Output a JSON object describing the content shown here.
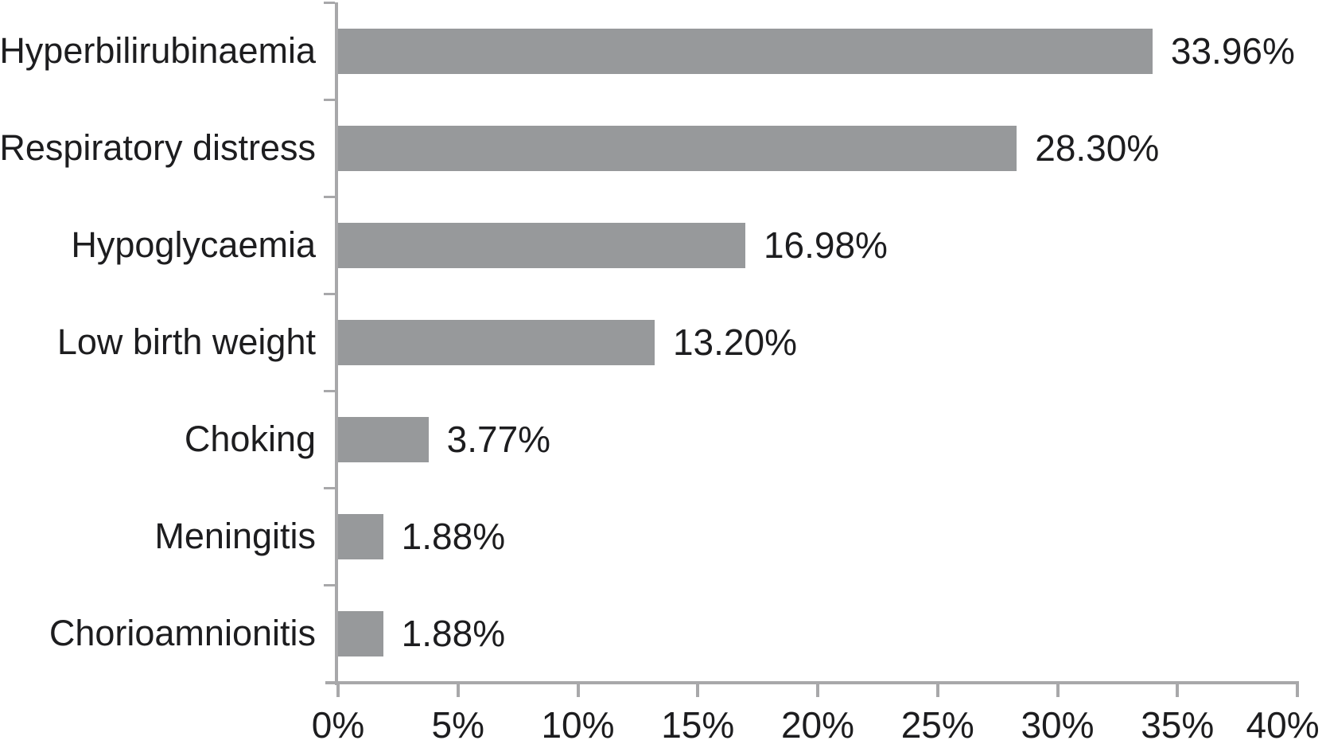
{
  "chart_data": {
    "type": "bar",
    "orientation": "horizontal",
    "categories": [
      "Hyperbilirubinaemia",
      "Respiratory distress",
      "Hypoglycaemia",
      "Low birth weight",
      "Choking",
      "Meningitis",
      "Chorioamnionitis"
    ],
    "values": [
      33.96,
      28.3,
      16.98,
      13.2,
      3.77,
      1.88,
      1.88
    ],
    "value_labels": [
      "33.96%",
      "28.30%",
      "16.98%",
      "13.20%",
      "3.77%",
      "1.88%",
      "1.88%"
    ],
    "xlim": [
      0,
      40
    ],
    "x_ticks": [
      {
        "value": 0,
        "label": "0%"
      },
      {
        "value": 5,
        "label": "5%"
      },
      {
        "value": 10,
        "label": "10%"
      },
      {
        "value": 15,
        "label": "15%"
      },
      {
        "value": 20,
        "label": "20%"
      },
      {
        "value": 25,
        "label": "25%"
      },
      {
        "value": 30,
        "label": "30%"
      },
      {
        "value": 35,
        "label": "35%"
      },
      {
        "value": 40,
        "label": "40%"
      }
    ],
    "grid": false,
    "legend_position": "none",
    "colors": {
      "bar": "#97999b",
      "axis": "#a8a8aa",
      "text": "#1d1d1f",
      "background": "#ffffff"
    }
  }
}
